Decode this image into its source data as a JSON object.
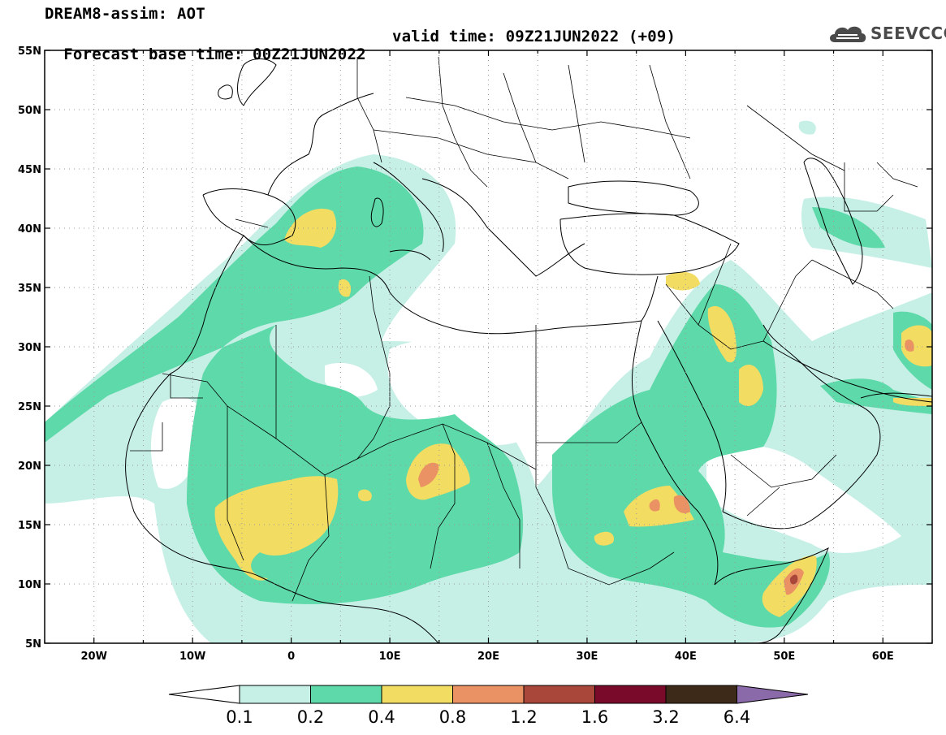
{
  "header": {
    "title": "DREAM8-assim: AOT",
    "base_time": "Forecast base time: 00Z21JUN2022",
    "valid_time": "valid time: 09Z21JUN2022 (+09)"
  },
  "logo": {
    "text": "SEEVCCC",
    "icon": "cloud-icon"
  },
  "map": {
    "lon_range": [
      -25,
      65
    ],
    "lat_range": [
      5,
      55
    ],
    "lon_ticks": [
      {
        "value": -20,
        "label": "20W"
      },
      {
        "value": -10,
        "label": "10W"
      },
      {
        "value": 0,
        "label": "0"
      },
      {
        "value": 10,
        "label": "10E"
      },
      {
        "value": 20,
        "label": "20E"
      },
      {
        "value": 30,
        "label": "30E"
      },
      {
        "value": 40,
        "label": "40E"
      },
      {
        "value": 50,
        "label": "50E"
      },
      {
        "value": 60,
        "label": "60E"
      }
    ],
    "lat_ticks": [
      {
        "value": 55,
        "label": "55N"
      },
      {
        "value": 50,
        "label": "50N"
      },
      {
        "value": 45,
        "label": "45N"
      },
      {
        "value": 40,
        "label": "40N"
      },
      {
        "value": 35,
        "label": "35N"
      },
      {
        "value": 30,
        "label": "30N"
      },
      {
        "value": 25,
        "label": "25N"
      },
      {
        "value": 20,
        "label": "20N"
      },
      {
        "value": 15,
        "label": "15N"
      },
      {
        "value": 10,
        "label": "10N"
      },
      {
        "value": 5,
        "label": "5N"
      }
    ],
    "grid": true
  },
  "colorbar": {
    "levels": [
      "0.1",
      "0.2",
      "0.4",
      "0.8",
      "1.2",
      "1.6",
      "3.2",
      "6.4"
    ],
    "colors": [
      "#c6f0e6",
      "#5ed9aa",
      "#f2dc62",
      "#ea9264",
      "#a9473a",
      "#7a0a2a",
      "#3d2a18",
      "#8a6aa8"
    ]
  },
  "colors": {
    "aot_low": "#c6f0e6",
    "aot_mid": "#5ed9aa",
    "aot_high": "#f2dc62",
    "aot_peak": "#ea9264",
    "aot_max": "#a9473a"
  }
}
